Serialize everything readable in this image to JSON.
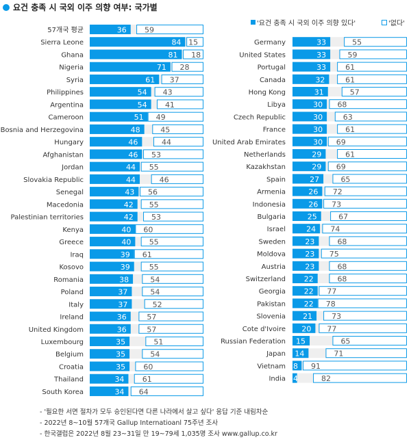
{
  "chart_data": {
    "type": "bar",
    "subtype": "stacked-horizontal-100",
    "title": "요건 충족 시 국외 이주 의향 여부: 국가별",
    "legend": {
      "yes": "'요건 충족 시 국외 이주 의향 있다'",
      "no": "'없다'"
    },
    "colors": {
      "yes": "#0a9ae8",
      "no_border": "#0a9ae8",
      "dontknow": "#efefef",
      "title_dot": "#0a9ae8"
    },
    "xlim": [
      0,
      100
    ],
    "columns": [
      [
        {
          "country": "57개국 평균",
          "yes": 36,
          "no": 59
        },
        {
          "country": "Sierra Leone",
          "yes": 84,
          "no": 15
        },
        {
          "country": "Ghana",
          "yes": 81,
          "no": 18
        },
        {
          "country": "Nigeria",
          "yes": 71,
          "no": 28
        },
        {
          "country": "Syria",
          "yes": 61,
          "no": 37
        },
        {
          "country": "Philippines",
          "yes": 54,
          "no": 43
        },
        {
          "country": "Argentina",
          "yes": 54,
          "no": 41
        },
        {
          "country": "Cameroon",
          "yes": 51,
          "no": 49
        },
        {
          "country": "Bosnia and Herzegovina",
          "yes": 48,
          "no": 45
        },
        {
          "country": "Hungary",
          "yes": 46,
          "no": 44
        },
        {
          "country": "Afghanistan",
          "yes": 46,
          "no": 53
        },
        {
          "country": "Jordan",
          "yes": 44,
          "no": 55
        },
        {
          "country": "Slovakia Republic",
          "yes": 44,
          "no": 46
        },
        {
          "country": "Senegal",
          "yes": 43,
          "no": 56
        },
        {
          "country": "Macedonia",
          "yes": 42,
          "no": 55
        },
        {
          "country": "Palestinian territories",
          "yes": 42,
          "no": 53
        },
        {
          "country": "Kenya",
          "yes": 40,
          "no": 60
        },
        {
          "country": "Greece",
          "yes": 40,
          "no": 55
        },
        {
          "country": "Iraq",
          "yes": 39,
          "no": 61
        },
        {
          "country": "Kosovo",
          "yes": 39,
          "no": 55
        },
        {
          "country": "Romania",
          "yes": 38,
          "no": 54
        },
        {
          "country": "Poland",
          "yes": 37,
          "no": 54
        },
        {
          "country": "Italy",
          "yes": 37,
          "no": 52
        },
        {
          "country": "Ireland",
          "yes": 36,
          "no": 57
        },
        {
          "country": "United Kingdom",
          "yes": 36,
          "no": 57
        },
        {
          "country": "Luxembourg",
          "yes": 35,
          "no": 51
        },
        {
          "country": "Belgium",
          "yes": 35,
          "no": 54
        },
        {
          "country": "Croatia",
          "yes": 35,
          "no": 60
        },
        {
          "country": "Thailand",
          "yes": 34,
          "no": 61
        },
        {
          "country": "South Korea",
          "yes": 34,
          "no": 64
        }
      ],
      [
        {
          "country": "Germany",
          "yes": 33,
          "no": 55
        },
        {
          "country": "United States",
          "yes": 33,
          "no": 59
        },
        {
          "country": "Portugal",
          "yes": 33,
          "no": 61
        },
        {
          "country": "Canada",
          "yes": 32,
          "no": 61
        },
        {
          "country": "Hong Kong",
          "yes": 31,
          "no": 57
        },
        {
          "country": "Libya",
          "yes": 30,
          "no": 68
        },
        {
          "country": "Czech Republic",
          "yes": 30,
          "no": 63
        },
        {
          "country": "France",
          "yes": 30,
          "no": 61
        },
        {
          "country": "United Arab Emirates",
          "yes": 30,
          "no": 69
        },
        {
          "country": "Netherlands",
          "yes": 29,
          "no": 61
        },
        {
          "country": "Kazakhstan",
          "yes": 29,
          "no": 69
        },
        {
          "country": "Spain",
          "yes": 27,
          "no": 65
        },
        {
          "country": "Armenia",
          "yes": 26,
          "no": 72
        },
        {
          "country": "Indonesia",
          "yes": 26,
          "no": 73
        },
        {
          "country": "Bulgaria",
          "yes": 25,
          "no": 67
        },
        {
          "country": "Israel",
          "yes": 24,
          "no": 74
        },
        {
          "country": "Sweden",
          "yes": 23,
          "no": 68
        },
        {
          "country": "Moldova",
          "yes": 23,
          "no": 75
        },
        {
          "country": "Austria",
          "yes": 23,
          "no": 68
        },
        {
          "country": "Switzerland",
          "yes": 22,
          "no": 68
        },
        {
          "country": "Georgia",
          "yes": 22,
          "no": 77
        },
        {
          "country": "Pakistan",
          "yes": 22,
          "no": 78
        },
        {
          "country": "Slovenia",
          "yes": 21,
          "no": 73
        },
        {
          "country": "Cote d'Ivoire",
          "yes": 20,
          "no": 77
        },
        {
          "country": "Russian Federation",
          "yes": 15,
          "no": 65
        },
        {
          "country": "Japan",
          "yes": 14,
          "no": 71
        },
        {
          "country": "Vietnam",
          "yes": 8,
          "no": 91
        },
        {
          "country": "India",
          "yes": 4,
          "no": 82
        }
      ]
    ]
  },
  "notes": [
    "- '필요한 서면 절차가 모두 승인된다면 다른 나라에서 살고 싶다' 응답 기준 내림차순",
    "- 2022년 8~10월 57개국 Gallup Internatioanl 75주년 조사",
    "- 한국갤럽은 2022년 8월 23~31일 만 19~79세 1,035명 조사 www.gallup.co.kr"
  ]
}
